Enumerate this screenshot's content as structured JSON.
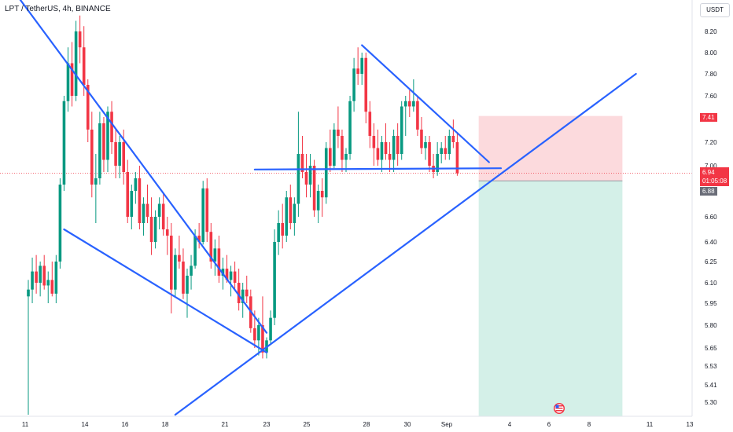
{
  "header": {
    "title": "LPT / TetherUS, 4h, BINANCE",
    "currency_button": "USDT"
  },
  "colors": {
    "up": "#089981",
    "down": "#f23645",
    "trendline": "#2962ff",
    "stop_zone": "#fcd3d7",
    "target_zone": "#cfeee6",
    "current_price": "#f23645",
    "entry": "#6a6d78"
  },
  "price_labels": {
    "stop": "7.41",
    "current": "6.94",
    "countdown": "01:05:08",
    "entry": "6.88"
  },
  "chart_data": {
    "type": "candlestick",
    "title": "LPT / TetherUS, 4h, BINANCE",
    "ylim": [
      5.22,
      8.35
    ],
    "y_ticks": [
      "8.20",
      "8.00",
      "7.80",
      "7.60",
      "7.40",
      "7.20",
      "7.00",
      "6.80",
      "6.60",
      "6.40",
      "6.25",
      "6.10",
      "5.95",
      "5.80",
      "5.65",
      "5.53",
      "5.41",
      "5.30"
    ],
    "x_ticks": [
      "11",
      "14",
      "16",
      "18",
      "21",
      "23",
      "25",
      "28",
      "30",
      "Sep",
      "4",
      "6",
      "8",
      "11",
      "13"
    ],
    "candles": [
      [
        6.0,
        6.12,
        5.22,
        6.05
      ],
      [
        6.05,
        6.28,
        5.95,
        6.18
      ],
      [
        6.18,
        6.3,
        6.02,
        6.1
      ],
      [
        6.1,
        6.25,
        6.0,
        6.22
      ],
      [
        6.22,
        6.3,
        6.05,
        6.08
      ],
      [
        6.08,
        6.18,
        5.95,
        6.12
      ],
      [
        6.12,
        6.25,
        6.0,
        6.02
      ],
      [
        6.02,
        6.3,
        5.95,
        6.25
      ],
      [
        6.25,
        6.9,
        6.2,
        6.85
      ],
      [
        6.85,
        7.6,
        6.8,
        7.55
      ],
      [
        7.55,
        8.05,
        7.45,
        7.9
      ],
      [
        7.9,
        8.1,
        7.5,
        7.6
      ],
      [
        7.6,
        8.3,
        7.55,
        8.2
      ],
      [
        8.2,
        8.35,
        7.9,
        8.05
      ],
      [
        8.05,
        8.25,
        7.6,
        7.7
      ],
      [
        7.7,
        7.75,
        7.2,
        7.3
      ],
      [
        7.3,
        7.45,
        6.75,
        6.85
      ],
      [
        6.85,
        7.1,
        6.55,
        6.9
      ],
      [
        6.9,
        7.45,
        6.85,
        7.35
      ],
      [
        7.35,
        7.4,
        6.95,
        7.05
      ],
      [
        7.05,
        7.5,
        6.95,
        7.45
      ],
      [
        7.45,
        7.55,
        7.1,
        7.2
      ],
      [
        7.2,
        7.3,
        6.9,
        7.0
      ],
      [
        7.0,
        7.25,
        6.9,
        7.2
      ],
      [
        7.2,
        7.3,
        6.85,
        6.95
      ],
      [
        6.95,
        7.05,
        6.55,
        6.6
      ],
      [
        6.6,
        6.85,
        6.5,
        6.8
      ],
      [
        6.8,
        6.95,
        6.7,
        6.9
      ],
      [
        6.9,
        7.0,
        6.5,
        6.55
      ],
      [
        6.55,
        6.75,
        6.45,
        6.7
      ],
      [
        6.7,
        6.85,
        6.55,
        6.6
      ],
      [
        6.6,
        6.75,
        6.3,
        6.4
      ],
      [
        6.4,
        6.65,
        6.35,
        6.6
      ],
      [
        6.6,
        6.75,
        6.5,
        6.7
      ],
      [
        6.7,
        6.78,
        6.45,
        6.5
      ],
      [
        6.5,
        6.6,
        6.3,
        6.45
      ],
      [
        6.45,
        6.55,
        5.88,
        6.05
      ],
      [
        6.05,
        6.35,
        6.0,
        6.3
      ],
      [
        6.3,
        6.45,
        6.2,
        6.25
      ],
      [
        6.25,
        6.35,
        5.98,
        6.02
      ],
      [
        6.02,
        6.2,
        5.85,
        6.15
      ],
      [
        6.15,
        6.3,
        6.05,
        6.22
      ],
      [
        6.22,
        6.5,
        6.2,
        6.45
      ],
      [
        6.45,
        6.55,
        6.35,
        6.4
      ],
      [
        6.4,
        6.88,
        6.38,
        6.82
      ],
      [
        6.82,
        6.9,
        6.4,
        6.48
      ],
      [
        6.48,
        6.55,
        6.2,
        6.25
      ],
      [
        6.25,
        6.42,
        6.15,
        6.35
      ],
      [
        6.35,
        6.45,
        6.1,
        6.15
      ],
      [
        6.15,
        6.28,
        6.05,
        6.2
      ],
      [
        6.2,
        6.3,
        6.1,
        6.12
      ],
      [
        6.12,
        6.22,
        6.0,
        6.18
      ],
      [
        6.18,
        6.25,
        6.05,
        6.1
      ],
      [
        6.1,
        6.2,
        5.9,
        5.95
      ],
      [
        5.95,
        6.1,
        5.85,
        6.05
      ],
      [
        6.05,
        6.15,
        5.95,
        6.0
      ],
      [
        6.0,
        6.05,
        5.75,
        5.78
      ],
      [
        5.78,
        5.9,
        5.65,
        5.7
      ],
      [
        5.7,
        5.85,
        5.6,
        5.8
      ],
      [
        5.8,
        6.0,
        5.58,
        5.62
      ],
      [
        5.62,
        5.72,
        5.58,
        5.7
      ],
      [
        5.7,
        5.9,
        5.68,
        5.85
      ],
      [
        5.85,
        6.5,
        5.8,
        6.4
      ],
      [
        6.4,
        6.65,
        6.3,
        6.55
      ],
      [
        6.55,
        6.7,
        6.35,
        6.45
      ],
      [
        6.45,
        6.8,
        6.4,
        6.75
      ],
      [
        6.75,
        6.85,
        6.5,
        6.55
      ],
      [
        6.55,
        6.75,
        6.45,
        6.7
      ],
      [
        6.7,
        7.45,
        6.6,
        7.1
      ],
      [
        7.1,
        7.25,
        6.9,
        6.95
      ],
      [
        6.95,
        7.1,
        6.75,
        6.85
      ],
      [
        6.85,
        7.1,
        6.75,
        7.0
      ],
      [
        7.0,
        7.05,
        6.6,
        6.65
      ],
      [
        6.65,
        6.85,
        6.55,
        6.8
      ],
      [
        6.8,
        6.9,
        6.6,
        6.75
      ],
      [
        6.75,
        7.2,
        6.7,
        7.15
      ],
      [
        7.15,
        7.3,
        6.95,
        7.0
      ],
      [
        7.0,
        7.35,
        6.98,
        7.3
      ],
      [
        7.3,
        7.5,
        7.15,
        7.25
      ],
      [
        7.25,
        7.3,
        6.95,
        7.05
      ],
      [
        7.05,
        7.15,
        6.95,
        7.1
      ],
      [
        7.1,
        7.6,
        7.05,
        7.55
      ],
      [
        7.55,
        7.95,
        7.45,
        7.85
      ],
      [
        7.85,
        8.05,
        7.7,
        7.8
      ],
      [
        7.8,
        8.0,
        7.7,
        7.95
      ],
      [
        7.95,
        8.0,
        7.35,
        7.45
      ],
      [
        7.45,
        7.55,
        7.15,
        7.25
      ],
      [
        7.25,
        7.35,
        7.0,
        7.15
      ],
      [
        7.15,
        7.3,
        7.0,
        7.05
      ],
      [
        7.05,
        7.25,
        6.95,
        7.2
      ],
      [
        7.2,
        7.35,
        7.05,
        7.1
      ],
      [
        7.1,
        7.2,
        6.95,
        7.05
      ],
      [
        7.05,
        7.3,
        6.95,
        7.25
      ],
      [
        7.25,
        7.35,
        7.0,
        7.1
      ],
      [
        7.1,
        7.55,
        7.05,
        7.5
      ],
      [
        7.5,
        7.6,
        7.25,
        7.55
      ],
      [
        7.55,
        7.65,
        7.4,
        7.5
      ],
      [
        7.5,
        7.75,
        7.45,
        7.55
      ],
      [
        7.55,
        7.6,
        7.25,
        7.3
      ],
      [
        7.3,
        7.4,
        7.1,
        7.15
      ],
      [
        7.15,
        7.25,
        7.05,
        7.2
      ],
      [
        7.2,
        7.25,
        6.95,
        7.0
      ],
      [
        7.0,
        7.1,
        6.9,
        6.95
      ],
      [
        6.95,
        7.2,
        6.92,
        7.1
      ],
      [
        7.1,
        7.2,
        7.02,
        7.15
      ],
      [
        7.15,
        7.25,
        7.05,
        7.1
      ],
      [
        7.1,
        7.3,
        7.05,
        7.25
      ],
      [
        7.25,
        7.38,
        7.15,
        7.2
      ],
      [
        7.2,
        7.28,
        6.92,
        6.94
      ]
    ],
    "trendlines": [
      {
        "name": "falling-wedge-top",
        "start": [
          -7,
          8.75
        ],
        "end": [
          60,
          5.75
        ]
      },
      {
        "name": "falling-wedge-bottom",
        "start": [
          9,
          6.5
        ],
        "end": [
          60,
          5.62
        ]
      },
      {
        "name": "rising-support",
        "start": [
          37,
          5.22
        ],
        "end": [
          153,
          7.8
        ]
      },
      {
        "name": "descending-resistance",
        "start": [
          84,
          8.07
        ],
        "end": [
          116,
          7.03
        ]
      },
      {
        "name": "horizontal-support",
        "start": [
          57,
          6.97
        ],
        "end": [
          119,
          6.98
        ]
      }
    ],
    "position": {
      "entry": 6.88,
      "stop": 7.41,
      "target": 5.22,
      "x_start": 113,
      "x_end": 148
    }
  }
}
